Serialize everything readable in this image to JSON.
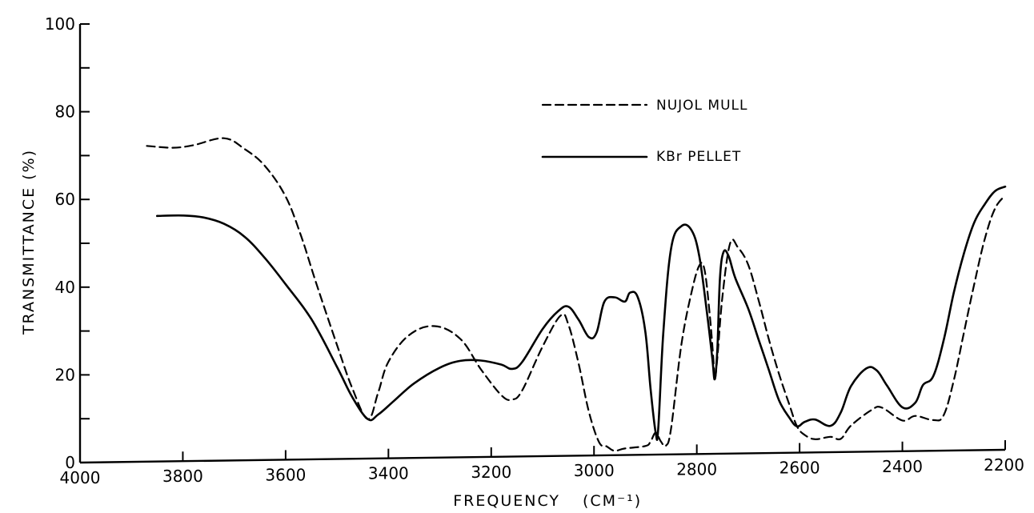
{
  "chart_data": {
    "type": "line",
    "title": "",
    "xlabel": "FREQUENCY",
    "xlabel_unit": "(CM⁻¹)",
    "ylabel": "TRANSMITTANCE (%)",
    "xlim": [
      4000,
      2200
    ],
    "ylim": [
      0,
      100
    ],
    "x_reversed": true,
    "grid": false,
    "legend_position": "top-right",
    "x_ticks": [
      4000,
      3800,
      3600,
      3400,
      3200,
      3000,
      2800,
      2600,
      2400,
      2200
    ],
    "x_tick_labels": [
      "4000",
      "3800",
      "3600",
      "3400",
      "3200",
      "3000",
      "2800",
      "2600",
      "2400",
      "2200"
    ],
    "y_ticks": [
      0,
      10,
      20,
      30,
      40,
      50,
      60,
      70,
      80,
      90,
      100
    ],
    "y_tick_labels": {
      "0": "0",
      "20": "20",
      "40": "40",
      "60": "60",
      "80": "80",
      "100": "100"
    },
    "series": [
      {
        "name": "NUJOL MULL",
        "style": "dashed",
        "color": "#000000",
        "x": [
          3870,
          3820,
          3780,
          3720,
          3680,
          3640,
          3600,
          3570,
          3540,
          3500,
          3470,
          3440,
          3420,
          3400,
          3360,
          3310,
          3260,
          3220,
          3180,
          3160,
          3140,
          3100,
          3065,
          3050,
          3030,
          3010,
          2990,
          2975,
          2960,
          2940,
          2900,
          2890,
          2880,
          2870,
          2860,
          2850,
          2830,
          2810,
          2795,
          2785,
          2775,
          2768,
          2765,
          2760,
          2750,
          2735,
          2720,
          2700,
          2680,
          2660,
          2640,
          2620,
          2605,
          2590,
          2570,
          2540,
          2520,
          2500,
          2460,
          2440,
          2400,
          2375,
          2340,
          2320,
          2300,
          2280,
          2260,
          2240,
          2220,
          2200
        ],
        "y": [
          72,
          71.5,
          72,
          73.5,
          71,
          67,
          60,
          51,
          40,
          26,
          16,
          9,
          15,
          22,
          28,
          30,
          27,
          20,
          14,
          13,
          15,
          25,
          32,
          30,
          21,
          10,
          3,
          2,
          1,
          1.5,
          2,
          3,
          5,
          3,
          2,
          6,
          25,
          37,
          43,
          42,
          32,
          22,
          17,
          22,
          36,
          48,
          47,
          43,
          35,
          26,
          18,
          11,
          6,
          4,
          3,
          3.5,
          3,
          6,
          9.5,
          10,
          7,
          8,
          7,
          8,
          16,
          27,
          38,
          48,
          55,
          58
        ]
      },
      {
        "name": "KBr PELLET",
        "style": "solid",
        "color": "#000000",
        "x": [
          3850,
          3800,
          3760,
          3720,
          3680,
          3640,
          3600,
          3550,
          3500,
          3470,
          3440,
          3420,
          3390,
          3350,
          3300,
          3260,
          3220,
          3180,
          3160,
          3140,
          3100,
          3070,
          3050,
          3030,
          3010,
          2995,
          2980,
          2960,
          2940,
          2930,
          2915,
          2900,
          2890,
          2880,
          2875,
          2865,
          2850,
          2830,
          2810,
          2795,
          2780,
          2770,
          2765,
          2760,
          2755,
          2748,
          2738,
          2725,
          2700,
          2680,
          2660,
          2640,
          2620,
          2605,
          2590,
          2570,
          2540,
          2520,
          2500,
          2470,
          2450,
          2430,
          2400,
          2375,
          2360,
          2340,
          2320,
          2300,
          2280,
          2260,
          2240,
          2220,
          2200
        ],
        "y": [
          56,
          56,
          55.5,
          54,
          51,
          46,
          40,
          32,
          21,
          14,
          9,
          10,
          13,
          17,
          20.5,
          22,
          22,
          21,
          20,
          21.5,
          29,
          33,
          34,
          31,
          27,
          28,
          35,
          36,
          35,
          37,
          36,
          28,
          15,
          5,
          6,
          28,
          47,
          52,
          51,
          45,
          32,
          22,
          17,
          24,
          40,
          46,
          45,
          40,
          33,
          26,
          19,
          12,
          8,
          6,
          7,
          7.5,
          6,
          9,
          15,
          19,
          18.5,
          15,
          10,
          11,
          15,
          17,
          25,
          36,
          45,
          52,
          56,
          59,
          60
        ]
      }
    ]
  }
}
